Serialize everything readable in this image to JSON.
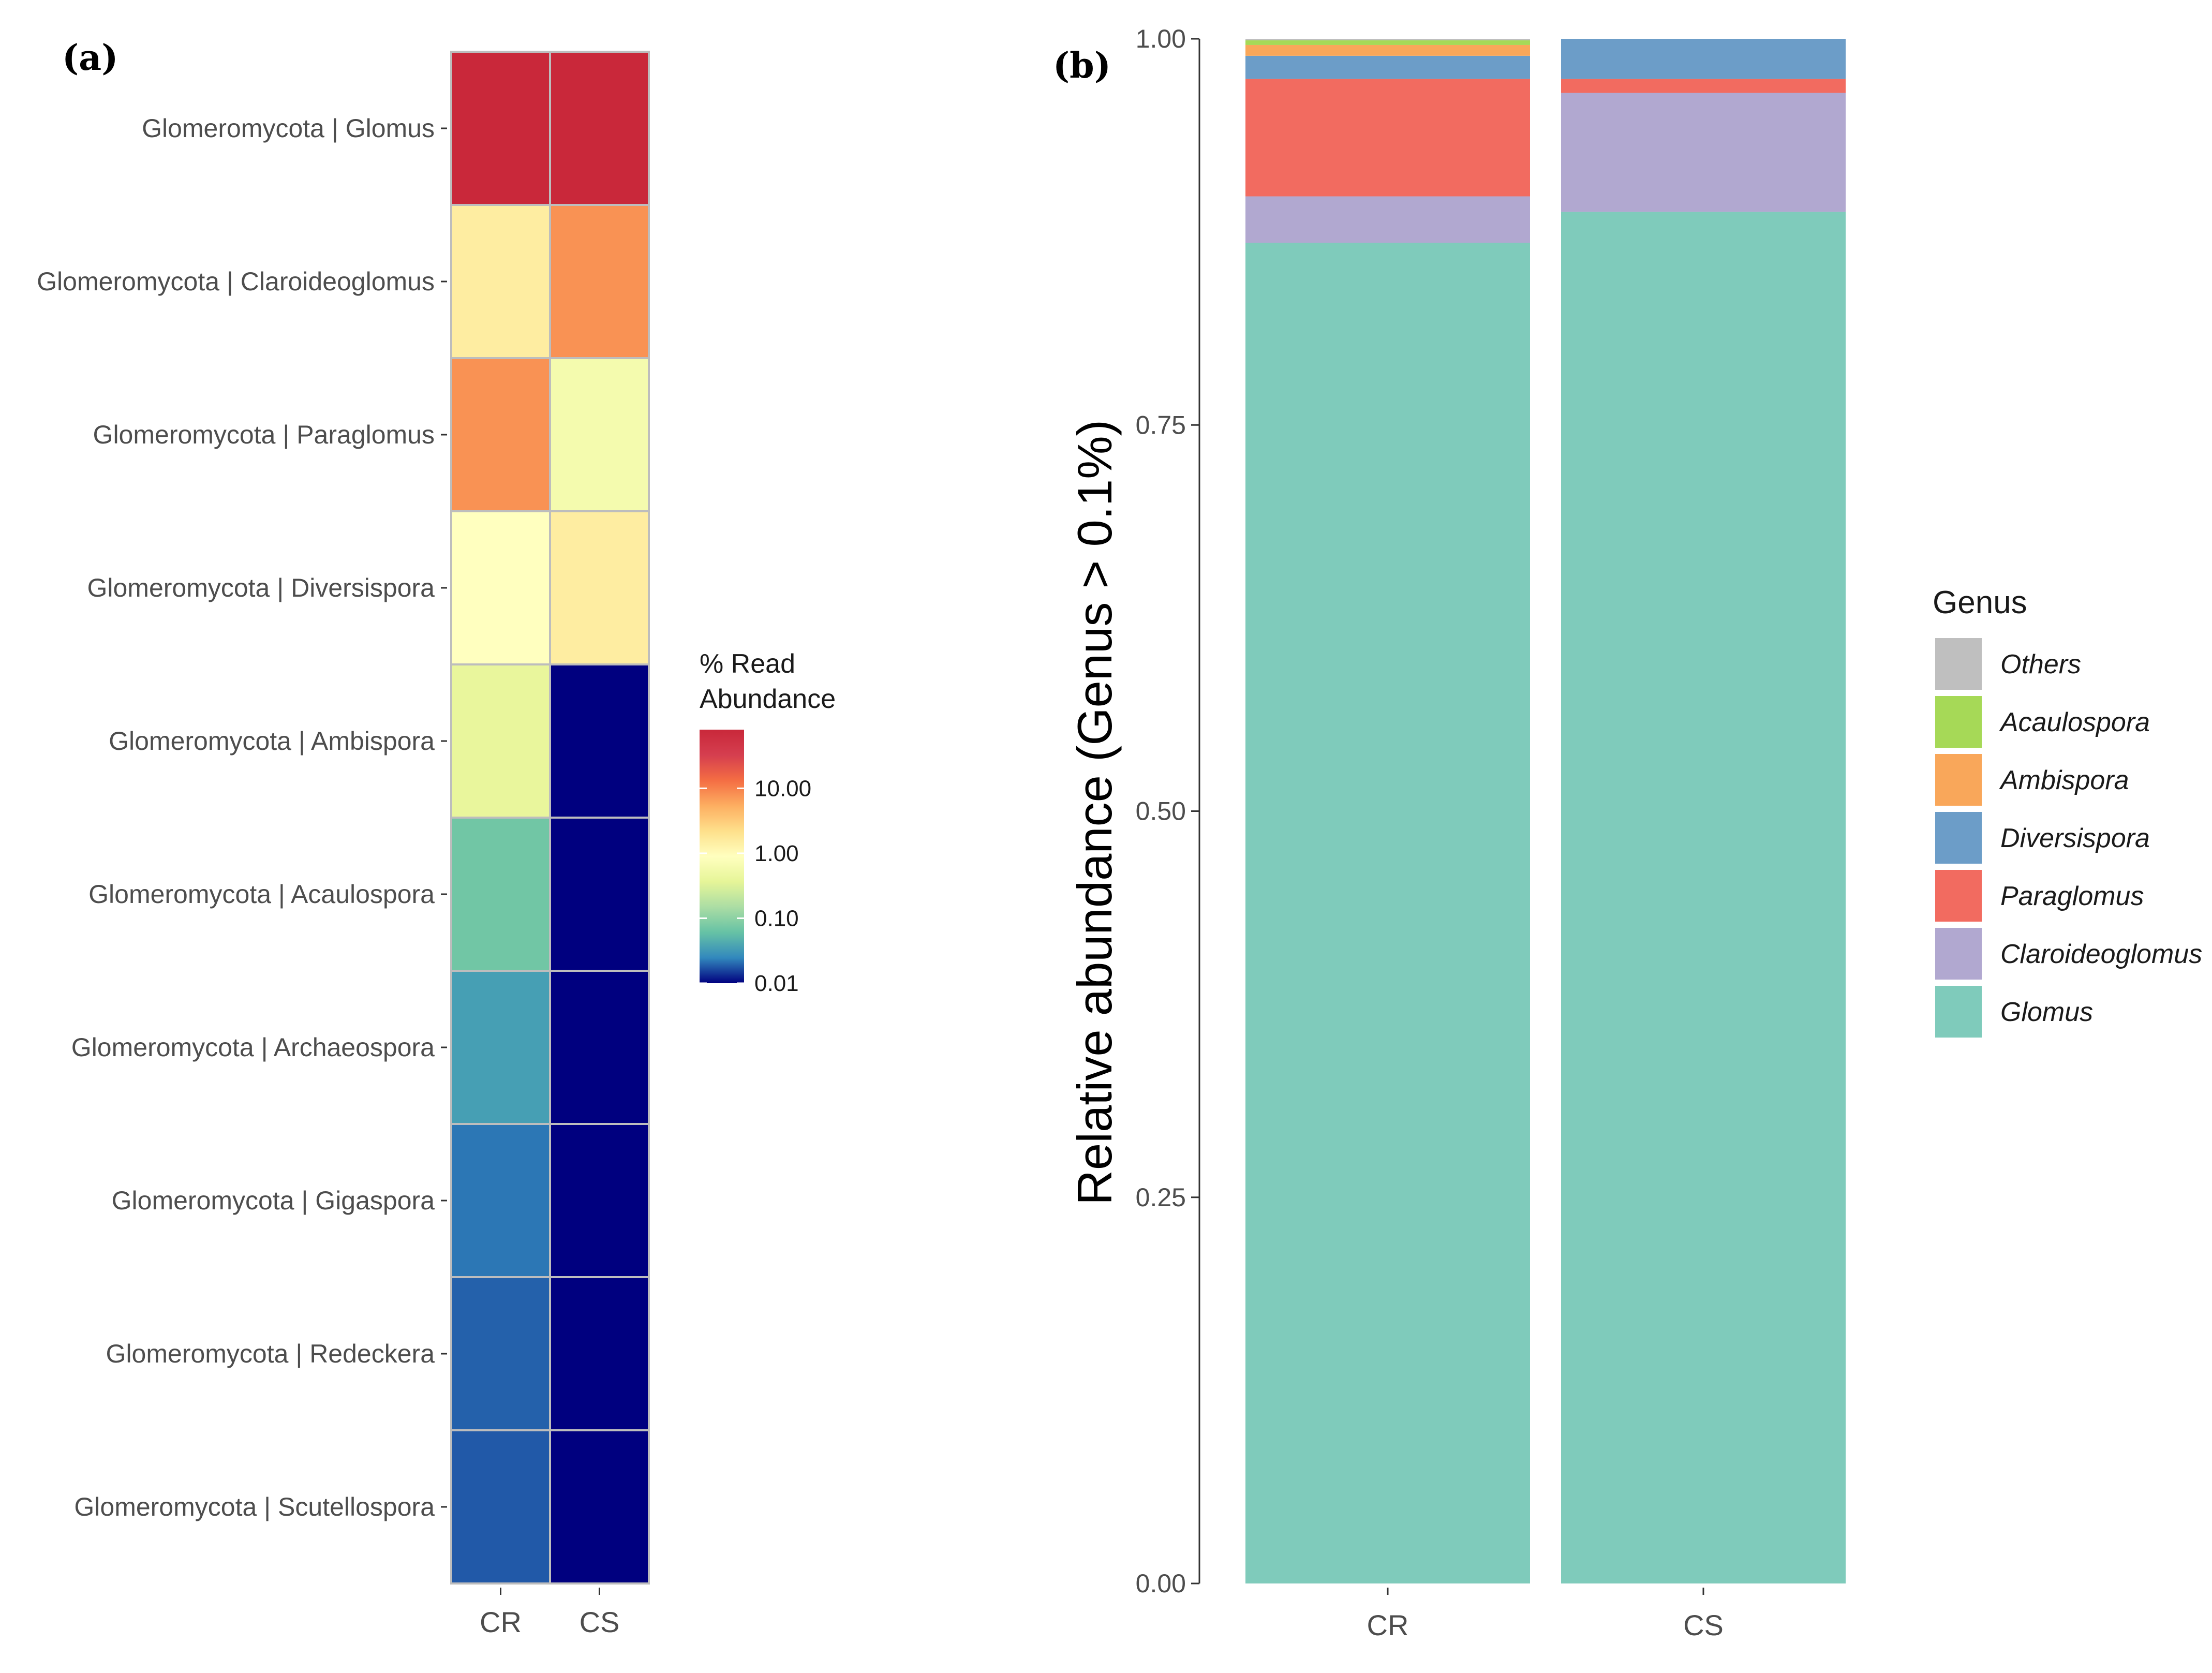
{
  "chart_data": [
    {
      "panel_label": "(a)",
      "type": "heatmap",
      "title": "",
      "rows": [
        "Glomeromycota | Glomus",
        "Glomeromycota | Claroideoglomus",
        "Glomeromycota | Paraglomus",
        "Glomeromycota | Diversispora",
        "Glomeromycota | Ambispora",
        "Glomeromycota | Acaulospora",
        "Glomeromycota | Archaeospora",
        "Glomeromycota | Gigaspora",
        "Glomeromycota | Redeckera",
        "Glomeromycota | Scutellospora"
      ],
      "columns": [
        "CR",
        "CS"
      ],
      "values": [
        [
          80.0,
          80.0
        ],
        [
          1.5,
          8.0
        ],
        [
          8.0,
          0.6
        ],
        [
          0.9,
          1.5
        ],
        [
          0.4,
          0.01
        ],
        [
          0.07,
          0.01
        ],
        [
          0.035,
          0.01
        ],
        [
          0.022,
          0.01
        ],
        [
          0.019,
          0.01
        ],
        [
          0.018,
          0.01
        ]
      ],
      "scale": "log10",
      "colorbar": {
        "title": [
          "% Read",
          "Abundance"
        ],
        "ticks": [
          10,
          1,
          0.1,
          0.01
        ],
        "tick_labels": [
          "10.00",
          "1.00",
          "0.10",
          "0.01"
        ],
        "range": [
          0.01,
          80
        ]
      },
      "colors": {
        "stops": [
          "#00007f",
          "#3288bd",
          "#66c2a5",
          "#abdda4",
          "#e6f598",
          "#ffffbf",
          "#fee08b",
          "#fdae61",
          "#f46d43",
          "#d53e4f",
          "#c9283a"
        ]
      }
    },
    {
      "panel_label": "(b)",
      "type": "bar",
      "stacked": true,
      "title": "",
      "xlabel": "",
      "ylabel": "Relative abundance (Genus > 0.1%)",
      "categories": [
        "CR",
        "CS"
      ],
      "ylim": [
        0,
        1
      ],
      "yticks": [
        0.0,
        0.25,
        0.5,
        0.75,
        1.0
      ],
      "ytick_labels": [
        "0.00",
        "0.25",
        "0.50",
        "0.75",
        "1.00"
      ],
      "series": [
        {
          "name": "Glomus",
          "values": [
            0.868,
            0.888
          ],
          "color": "#7fcbbb"
        },
        {
          "name": "Claroideoglomus",
          "values": [
            0.03,
            0.077
          ],
          "color": "#b1a8d0"
        },
        {
          "name": "Paraglomus",
          "values": [
            0.076,
            0.009
          ],
          "color": "#f26b60"
        },
        {
          "name": "Diversispora",
          "values": [
            0.015,
            0.026
          ],
          "color": "#6c9dc8"
        },
        {
          "name": "Ambispora",
          "values": [
            0.007,
            0.0
          ],
          "color": "#f9a75a"
        },
        {
          "name": "Acaulospora",
          "values": [
            0.003,
            0.0
          ],
          "color": "#a6d957"
        },
        {
          "name": "Others",
          "values": [
            0.001,
            0.0
          ],
          "color": "#bfbfbf"
        }
      ],
      "legend": {
        "title": "Genus",
        "placement": "right",
        "order": [
          "Others",
          "Acaulospora",
          "Ambispora",
          "Diversispora",
          "Paraglomus",
          "Claroideoglomus",
          "Glomus"
        ]
      }
    }
  ]
}
